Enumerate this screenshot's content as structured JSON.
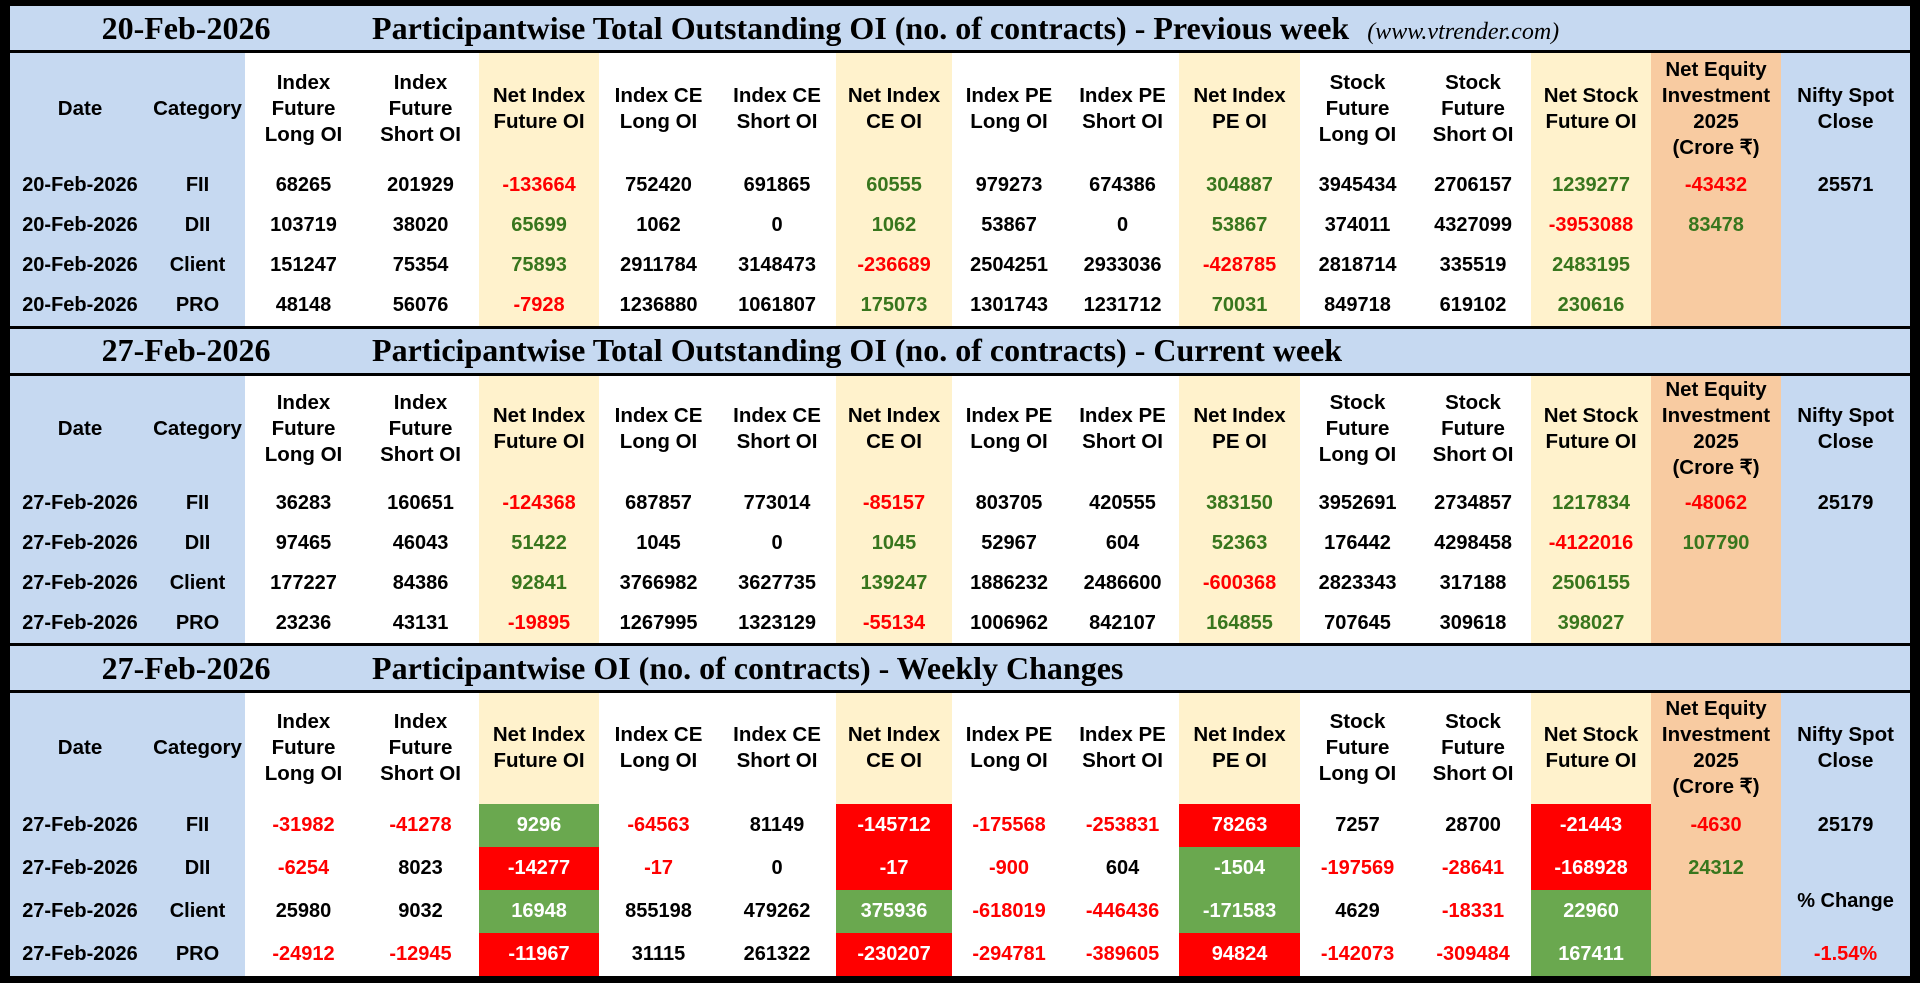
{
  "colors": {
    "header_blue": "#c6d9f1",
    "net_yellow": "#fff2cc",
    "equity_orange": "#f8cba1",
    "positive_green": "#38761d",
    "negative_red": "#ff0000",
    "fill_green": "#6aa84f",
    "fill_red": "#ff0000"
  },
  "site": "(www.vtrender.com)",
  "headers": [
    "Date",
    "Category",
    "Index\nFuture\nLong OI",
    "Index\nFuture\nShort OI",
    "Net Index\nFuture OI",
    "Index CE\nLong OI",
    "Index CE\nShort OI",
    "Net Index\nCE OI",
    "Index PE\nLong OI",
    "Index PE\nShort OI",
    "Net Index\nPE OI",
    "Stock\nFuture\nLong OI",
    "Stock\nFuture\nShort OI",
    "Net Stock\nFuture OI",
    "Net Equity\nInvestment\n2025\n(Crore ₹)",
    "Nifty Spot\nClose"
  ],
  "sections": [
    {
      "date": "20-Feb-2026",
      "title": "Participantwise Total Outstanding OI (no. of contracts) - Previous week",
      "show_site": true,
      "rows": [
        [
          {
            "v": "20-Feb-2026"
          },
          {
            "v": "FII"
          },
          {
            "v": "68265"
          },
          {
            "v": "201929"
          },
          {
            "v": "-133664",
            "t": "red"
          },
          {
            "v": "752420"
          },
          {
            "v": "691865"
          },
          {
            "v": "60555",
            "t": "green"
          },
          {
            "v": "979273"
          },
          {
            "v": "674386"
          },
          {
            "v": "304887",
            "t": "green"
          },
          {
            "v": "3945434"
          },
          {
            "v": "2706157"
          },
          {
            "v": "1239277",
            "t": "green"
          },
          {
            "v": "-43432",
            "t": "red"
          },
          {
            "v": "25571"
          }
        ],
        [
          {
            "v": "20-Feb-2026"
          },
          {
            "v": "DII"
          },
          {
            "v": "103719"
          },
          {
            "v": "38020"
          },
          {
            "v": "65699",
            "t": "green"
          },
          {
            "v": "1062"
          },
          {
            "v": "0"
          },
          {
            "v": "1062",
            "t": "green"
          },
          {
            "v": "53867"
          },
          {
            "v": "0"
          },
          {
            "v": "53867",
            "t": "green"
          },
          {
            "v": "374011"
          },
          {
            "v": "4327099"
          },
          {
            "v": "-3953088",
            "t": "red"
          },
          {
            "v": "83478",
            "t": "green"
          },
          {
            "v": ""
          }
        ],
        [
          {
            "v": "20-Feb-2026"
          },
          {
            "v": "Client"
          },
          {
            "v": "151247"
          },
          {
            "v": "75354"
          },
          {
            "v": "75893",
            "t": "green"
          },
          {
            "v": "2911784"
          },
          {
            "v": "3148473"
          },
          {
            "v": "-236689",
            "t": "red"
          },
          {
            "v": "2504251"
          },
          {
            "v": "2933036"
          },
          {
            "v": "-428785",
            "t": "red"
          },
          {
            "v": "2818714"
          },
          {
            "v": "335519"
          },
          {
            "v": "2483195",
            "t": "green"
          },
          {
            "v": ""
          },
          {
            "v": ""
          }
        ],
        [
          {
            "v": "20-Feb-2026"
          },
          {
            "v": "PRO"
          },
          {
            "v": "48148"
          },
          {
            "v": "56076"
          },
          {
            "v": "-7928",
            "t": "red"
          },
          {
            "v": "1236880"
          },
          {
            "v": "1061807"
          },
          {
            "v": "175073",
            "t": "green"
          },
          {
            "v": "1301743"
          },
          {
            "v": "1231712"
          },
          {
            "v": "70031",
            "t": "green"
          },
          {
            "v": "849718"
          },
          {
            "v": "619102"
          },
          {
            "v": "230616",
            "t": "green"
          },
          {
            "v": ""
          },
          {
            "v": ""
          }
        ]
      ]
    },
    {
      "date": "27-Feb-2026",
      "title": "Participantwise Total Outstanding OI (no. of contracts) - Current week",
      "show_site": false,
      "rows": [
        [
          {
            "v": "27-Feb-2026"
          },
          {
            "v": "FII"
          },
          {
            "v": "36283"
          },
          {
            "v": "160651"
          },
          {
            "v": "-124368",
            "t": "red"
          },
          {
            "v": "687857"
          },
          {
            "v": "773014"
          },
          {
            "v": "-85157",
            "t": "red"
          },
          {
            "v": "803705"
          },
          {
            "v": "420555"
          },
          {
            "v": "383150",
            "t": "green"
          },
          {
            "v": "3952691"
          },
          {
            "v": "2734857"
          },
          {
            "v": "1217834",
            "t": "green"
          },
          {
            "v": "-48062",
            "t": "red"
          },
          {
            "v": "25179"
          }
        ],
        [
          {
            "v": "27-Feb-2026"
          },
          {
            "v": "DII"
          },
          {
            "v": "97465"
          },
          {
            "v": "46043"
          },
          {
            "v": "51422",
            "t": "green"
          },
          {
            "v": "1045"
          },
          {
            "v": "0"
          },
          {
            "v": "1045",
            "t": "green"
          },
          {
            "v": "52967"
          },
          {
            "v": "604"
          },
          {
            "v": "52363",
            "t": "green"
          },
          {
            "v": "176442"
          },
          {
            "v": "4298458"
          },
          {
            "v": "-4122016",
            "t": "red"
          },
          {
            "v": "107790",
            "t": "green"
          },
          {
            "v": ""
          }
        ],
        [
          {
            "v": "27-Feb-2026"
          },
          {
            "v": "Client"
          },
          {
            "v": "177227"
          },
          {
            "v": "84386"
          },
          {
            "v": "92841",
            "t": "green"
          },
          {
            "v": "3766982"
          },
          {
            "v": "3627735"
          },
          {
            "v": "139247",
            "t": "green"
          },
          {
            "v": "1886232"
          },
          {
            "v": "2486600"
          },
          {
            "v": "-600368",
            "t": "red"
          },
          {
            "v": "2823343"
          },
          {
            "v": "317188"
          },
          {
            "v": "2506155",
            "t": "green"
          },
          {
            "v": ""
          },
          {
            "v": ""
          }
        ],
        [
          {
            "v": "27-Feb-2026"
          },
          {
            "v": "PRO"
          },
          {
            "v": "23236"
          },
          {
            "v": "43131"
          },
          {
            "v": "-19895",
            "t": "red"
          },
          {
            "v": "1267995"
          },
          {
            "v": "1323129"
          },
          {
            "v": "-55134",
            "t": "red"
          },
          {
            "v": "1006962"
          },
          {
            "v": "842107"
          },
          {
            "v": "164855",
            "t": "green"
          },
          {
            "v": "707645"
          },
          {
            "v": "309618"
          },
          {
            "v": "398027",
            "t": "green"
          },
          {
            "v": ""
          },
          {
            "v": ""
          }
        ]
      ]
    },
    {
      "date": "27-Feb-2026",
      "title": "Participantwise OI (no. of contracts) - Weekly Changes",
      "show_site": false,
      "rows": [
        [
          {
            "v": "27-Feb-2026"
          },
          {
            "v": "FII"
          },
          {
            "v": "-31982",
            "t": "red"
          },
          {
            "v": "-41278",
            "t": "red"
          },
          {
            "v": "9296",
            "f": "green"
          },
          {
            "v": "-64563",
            "t": "red"
          },
          {
            "v": "81149"
          },
          {
            "v": "-145712",
            "f": "red"
          },
          {
            "v": "-175568",
            "t": "red"
          },
          {
            "v": "-253831",
            "t": "red"
          },
          {
            "v": "78263",
            "f": "red"
          },
          {
            "v": "7257"
          },
          {
            "v": "28700"
          },
          {
            "v": "-21443",
            "f": "red"
          },
          {
            "v": "-4630",
            "t": "red"
          },
          {
            "v": "25179"
          }
        ],
        [
          {
            "v": "27-Feb-2026"
          },
          {
            "v": "DII"
          },
          {
            "v": "-6254",
            "t": "red"
          },
          {
            "v": "8023"
          },
          {
            "v": "-14277",
            "f": "red"
          },
          {
            "v": "-17",
            "t": "red"
          },
          {
            "v": "0"
          },
          {
            "v": "-17",
            "f": "red"
          },
          {
            "v": "-900",
            "t": "red"
          },
          {
            "v": "604"
          },
          {
            "v": "-1504",
            "f": "green"
          },
          {
            "v": "-197569",
            "t": "red"
          },
          {
            "v": "-28641",
            "t": "red"
          },
          {
            "v": "-168928",
            "f": "red"
          },
          {
            "v": "24312",
            "t": "green"
          },
          {
            "v": ""
          }
        ],
        [
          {
            "v": "27-Feb-2026"
          },
          {
            "v": "Client"
          },
          {
            "v": "25980"
          },
          {
            "v": "9032"
          },
          {
            "v": "16948",
            "f": "green"
          },
          {
            "v": "855198"
          },
          {
            "v": "479262"
          },
          {
            "v": "375936",
            "f": "green"
          },
          {
            "v": "-618019",
            "t": "red"
          },
          {
            "v": "-446436",
            "t": "red"
          },
          {
            "v": "-171583",
            "f": "green"
          },
          {
            "v": "4629"
          },
          {
            "v": "-18331",
            "t": "red"
          },
          {
            "v": "22960",
            "f": "green"
          },
          {
            "v": ""
          },
          {
            "v": "% Change",
            "top": true
          }
        ],
        [
          {
            "v": "27-Feb-2026"
          },
          {
            "v": "PRO"
          },
          {
            "v": "-24912",
            "t": "red"
          },
          {
            "v": "-12945",
            "t": "red"
          },
          {
            "v": "-11967",
            "f": "red"
          },
          {
            "v": "31115"
          },
          {
            "v": "261322"
          },
          {
            "v": "-230207",
            "f": "red"
          },
          {
            "v": "-294781",
            "t": "red"
          },
          {
            "v": "-389605",
            "t": "red"
          },
          {
            "v": "94824",
            "f": "red"
          },
          {
            "v": "-142073",
            "t": "red"
          },
          {
            "v": "-309484",
            "t": "red"
          },
          {
            "v": "167411",
            "f": "green"
          },
          {
            "v": ""
          },
          {
            "v": "-1.54%",
            "t": "red"
          }
        ]
      ]
    }
  ]
}
